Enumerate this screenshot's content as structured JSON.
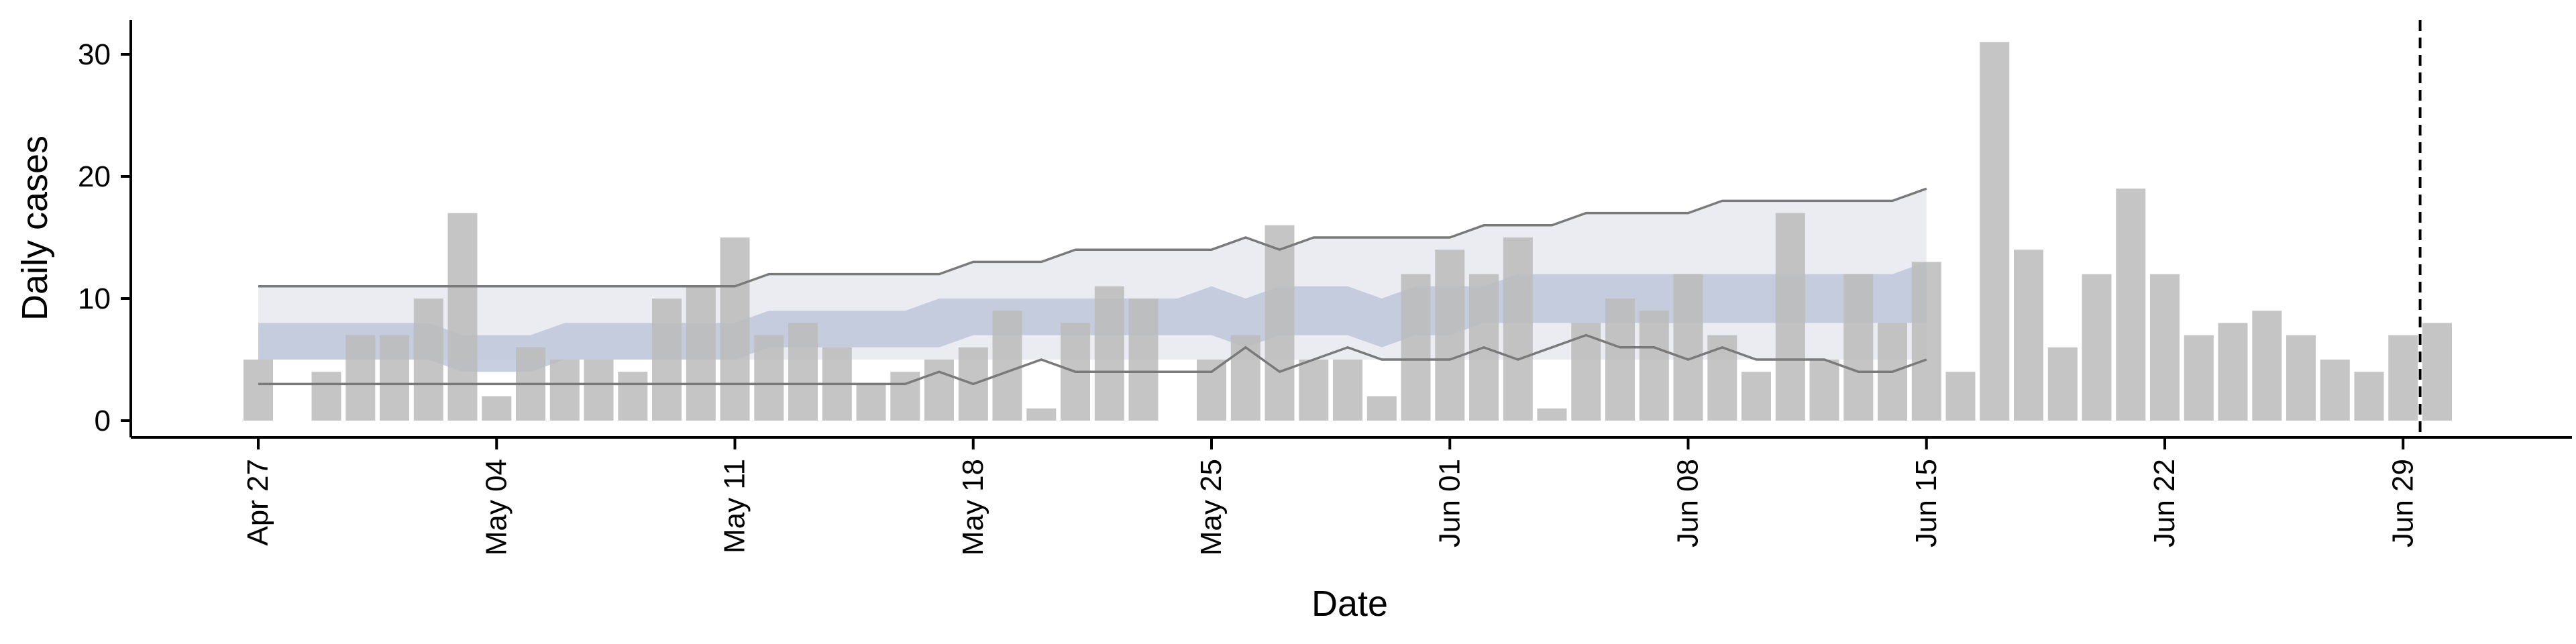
{
  "chart_data": {
    "type": "bar",
    "xlabel": "Date",
    "ylabel": "Daily cases",
    "ylim": [
      -1.5,
      32.5
    ],
    "yticks": [
      0,
      10,
      20,
      30
    ],
    "x_tick_labels": [
      "Apr 27",
      "May 04",
      "May 11",
      "May 18",
      "May 25",
      "Jun 01",
      "Jun 08",
      "Jun 15",
      "Jun 22",
      "Jun 29"
    ],
    "start_date": "Apr 27",
    "vline_date": "Jun 29",
    "colors": {
      "bars": "#bbbbbb",
      "outer_band": "#e8eaf1",
      "inner_band": "#bec7db",
      "quantile_lines": "#7a7a7a"
    },
    "bars": [
      5,
      0,
      4,
      7,
      7,
      10,
      17,
      2,
      6,
      5,
      5,
      4,
      10,
      11,
      15,
      7,
      8,
      6,
      3,
      4,
      5,
      6,
      9,
      1,
      8,
      11,
      10,
      0,
      5,
      7,
      16,
      5,
      5,
      2,
      12,
      14,
      12,
      15,
      1,
      8,
      10,
      9,
      12,
      7,
      4,
      17,
      5,
      12,
      8,
      13,
      4,
      31,
      14,
      6,
      12,
      19,
      12,
      7,
      8,
      9,
      7,
      5,
      4,
      7,
      8
    ],
    "forecast": {
      "upper_line": [
        11,
        11,
        11,
        11,
        11,
        11,
        11,
        11,
        11,
        11,
        11,
        11,
        11,
        11,
        11,
        12,
        12,
        12,
        12,
        12,
        12,
        13,
        13,
        13,
        14,
        14,
        14,
        14,
        14,
        15,
        14,
        15,
        15,
        15,
        15,
        15,
        16,
        16,
        16,
        17,
        17,
        17,
        17,
        18,
        18,
        18,
        18,
        18,
        18,
        19
      ],
      "outer_low": [
        5,
        5,
        5,
        5,
        5,
        5,
        5,
        5,
        5,
        5,
        5,
        5,
        5,
        5,
        5,
        5,
        5,
        5,
        5,
        5,
        5,
        5,
        5,
        5,
        5,
        5,
        5,
        5,
        5,
        5,
        5,
        5,
        5,
        5,
        5,
        5,
        5,
        5,
        5,
        5,
        5,
        5,
        5,
        5,
        5,
        5,
        5,
        5,
        5,
        5
      ],
      "inner_high": [
        8,
        8,
        8,
        8,
        8,
        8,
        7,
        7,
        7,
        8,
        8,
        8,
        8,
        8,
        8,
        9,
        9,
        9,
        9,
        9,
        10,
        10,
        10,
        10,
        10,
        10,
        10,
        10,
        11,
        10,
        11,
        11,
        11,
        10,
        11,
        11,
        11,
        12,
        12,
        12,
        12,
        12,
        12,
        12,
        12,
        12,
        12,
        12,
        12,
        13
      ],
      "inner_low": [
        5,
        5,
        5,
        5,
        5,
        5,
        4,
        4,
        4,
        5,
        5,
        5,
        5,
        5,
        5,
        6,
        6,
        6,
        6,
        6,
        6,
        7,
        7,
        7,
        7,
        7,
        7,
        7,
        7,
        6,
        7,
        7,
        7,
        6,
        7,
        7,
        8,
        8,
        8,
        8,
        8,
        8,
        8,
        8,
        8,
        8,
        8,
        8,
        8,
        8
      ],
      "lower_line": [
        3,
        3,
        3,
        3,
        3,
        3,
        3,
        3,
        3,
        3,
        3,
        3,
        3,
        3,
        3,
        3,
        3,
        3,
        3,
        3,
        4,
        3,
        4,
        5,
        4,
        4,
        4,
        4,
        4,
        6,
        4,
        5,
        6,
        5,
        5,
        5,
        6,
        5,
        6,
        7,
        6,
        6,
        5,
        6,
        5,
        5,
        5,
        4,
        4,
        5
      ]
    }
  }
}
